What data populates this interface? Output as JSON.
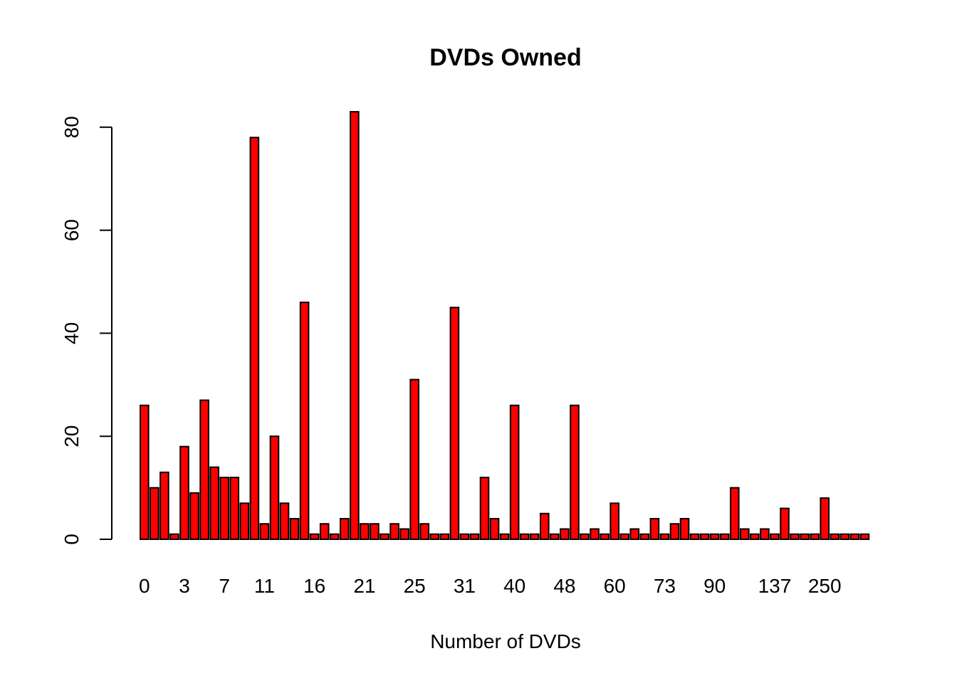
{
  "chart_data": {
    "type": "bar",
    "title": "DVDs Owned",
    "xlabel": "Number of DVDs",
    "ylabel": "",
    "ylim": [
      0,
      83
    ],
    "yticks": [
      0,
      20,
      40,
      60,
      80
    ],
    "bar_color": "#ff0000",
    "x_tick_labels": [
      {
        "index": 0,
        "label": "0"
      },
      {
        "index": 4,
        "label": "3"
      },
      {
        "index": 8,
        "label": "7"
      },
      {
        "index": 12,
        "label": "11"
      },
      {
        "index": 17,
        "label": "16"
      },
      {
        "index": 22,
        "label": "21"
      },
      {
        "index": 27,
        "label": "25"
      },
      {
        "index": 32,
        "label": "31"
      },
      {
        "index": 37,
        "label": "40"
      },
      {
        "index": 42,
        "label": "48"
      },
      {
        "index": 47,
        "label": "60"
      },
      {
        "index": 52,
        "label": "73"
      },
      {
        "index": 57,
        "label": "90"
      },
      {
        "index": 63,
        "label": "137"
      },
      {
        "index": 68,
        "label": "250"
      }
    ],
    "values": [
      26,
      10,
      13,
      1,
      18,
      9,
      27,
      14,
      12,
      12,
      7,
      78,
      3,
      20,
      7,
      4,
      46,
      1,
      3,
      1,
      4,
      83,
      3,
      3,
      1,
      3,
      2,
      31,
      3,
      1,
      1,
      45,
      1,
      1,
      12,
      4,
      1,
      26,
      1,
      1,
      5,
      1,
      2,
      26,
      1,
      2,
      1,
      7,
      1,
      2,
      1,
      4,
      1,
      3,
      4,
      1,
      1,
      1,
      1,
      10,
      2,
      1,
      2,
      1,
      6,
      1,
      1,
      1,
      8,
      1,
      1,
      1,
      1
    ]
  }
}
